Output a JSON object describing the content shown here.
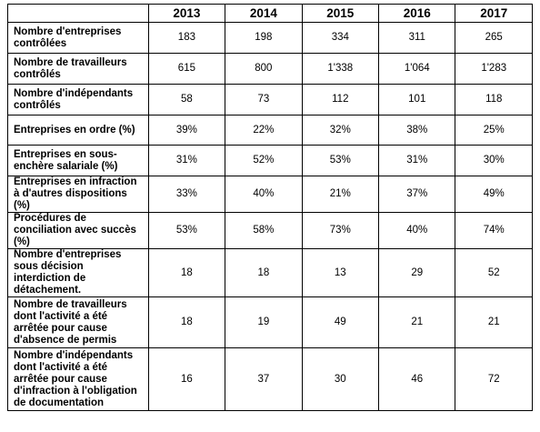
{
  "table": {
    "headers": [
      "",
      "2013",
      "2014",
      "2015",
      "2016",
      "2017"
    ],
    "rows": [
      {
        "label": "Nombre d'entreprises contrôlées",
        "values": [
          "183",
          "198",
          "334",
          "311",
          "265"
        ]
      },
      {
        "label": "Nombre de travailleurs contrôlés",
        "values": [
          "615",
          "800",
          "1'338",
          "1'064",
          "1'283"
        ]
      },
      {
        "label": "Nombre d'indépendants contrôlés",
        "values": [
          "58",
          "73",
          "112",
          "101",
          "118"
        ]
      },
      {
        "label": "Entreprises en ordre (%)",
        "values": [
          "39%",
          "22%",
          "32%",
          "38%",
          "25%"
        ]
      },
      {
        "label": "Entreprises en sous-enchère salariale (%)",
        "values": [
          "31%",
          "52%",
          "53%",
          "31%",
          "30%"
        ]
      },
      {
        "label": "Entreprises en infraction à d'autres dispositions (%)",
        "values": [
          "33%",
          "40%",
          "21%",
          "37%",
          "49%"
        ]
      },
      {
        "label": "Procédures de conciliation avec succès (%)",
        "values": [
          "53%",
          "58%",
          "73%",
          "40%",
          "74%"
        ]
      },
      {
        "label": "Nombre d'entreprises sous décision interdiction de détachement.",
        "values": [
          "18",
          "18",
          "13",
          "29",
          "52"
        ]
      },
      {
        "label": "Nombre de travailleurs dont l'activité a été arrêtée pour cause d'absence de permis",
        "values": [
          "18",
          "19",
          "49",
          "21",
          "21"
        ]
      },
      {
        "label": "Nombre d'indépendants dont l'activité a été arrêtée pour cause d'infraction à l'obligation de documentation",
        "values": [
          "16",
          "37",
          "30",
          "46",
          "72"
        ]
      }
    ]
  }
}
